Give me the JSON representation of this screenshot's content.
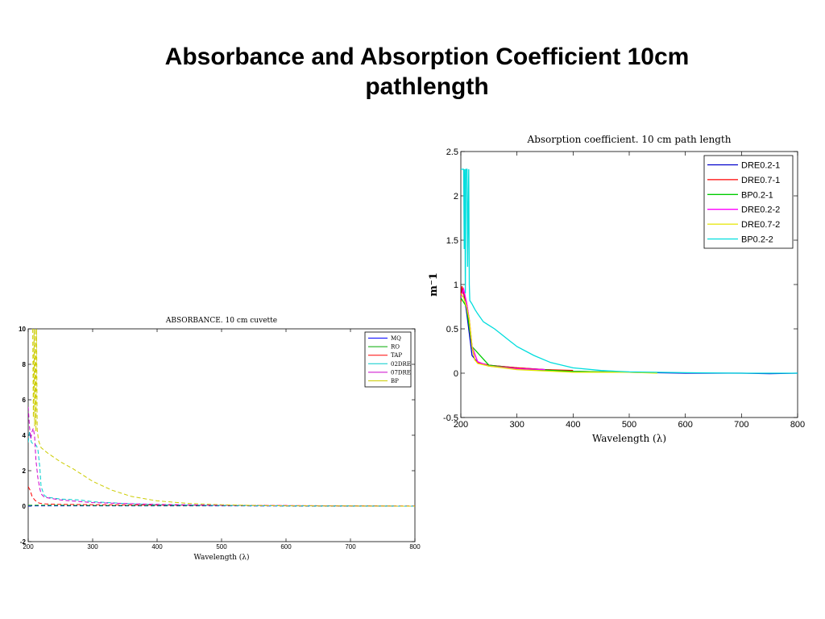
{
  "slide": {
    "title_line1": "Absorbance and Absorption Coefficient 10cm",
    "title_line2": "pathlength"
  },
  "chart_data": [
    {
      "type": "line",
      "title": "ABSORBANCE. 10 cm cuvette",
      "xlabel": "Wavelength (λ)",
      "ylabel": "",
      "xlim": [
        200,
        800
      ],
      "ylim": [
        -2,
        10
      ],
      "xticks": [
        200,
        300,
        400,
        500,
        600,
        700,
        800
      ],
      "yticks": [
        -2,
        0,
        2,
        4,
        6,
        8,
        10
      ],
      "grid": false,
      "legend_position": "top-right",
      "line_style": "dashed",
      "series": [
        {
          "name": "MQ",
          "color": "#0000ff",
          "x": [
            200,
            205,
            210,
            215,
            220,
            250,
            300,
            400,
            500,
            600,
            700,
            800
          ],
          "y": [
            0.0,
            0.02,
            0.02,
            0.02,
            0.02,
            0.02,
            0.02,
            0.02,
            0.02,
            0.01,
            0.0,
            0.0
          ]
        },
        {
          "name": "RO",
          "color": "#00aa00",
          "x": [
            200,
            210,
            220,
            250,
            300,
            400,
            500,
            600,
            700,
            800
          ],
          "y": [
            0.05,
            0.05,
            0.05,
            0.05,
            0.04,
            0.04,
            0.03,
            0.02,
            0.01,
            0.0
          ]
        },
        {
          "name": "TAP",
          "color": "#ff0000",
          "x": [
            200,
            203,
            206,
            210,
            215,
            220,
            230,
            250,
            300,
            400,
            500,
            600,
            700,
            800
          ],
          "y": [
            1.1,
            0.9,
            0.55,
            0.35,
            0.2,
            0.15,
            0.12,
            0.1,
            0.08,
            0.06,
            0.05,
            0.03,
            0.02,
            0.01
          ]
        },
        {
          "name": "02DRE",
          "color": "#00cccc",
          "x": [
            200,
            202,
            205,
            208,
            210,
            213,
            215,
            218,
            220,
            225,
            230,
            250,
            280,
            300,
            350,
            400,
            500,
            600,
            700,
            800
          ],
          "y": [
            3.6,
            4.2,
            3.6,
            3.5,
            3.5,
            3.4,
            3.2,
            2.2,
            1.1,
            0.6,
            0.5,
            0.4,
            0.35,
            0.25,
            0.15,
            0.08,
            0.04,
            0.02,
            0.01,
            0.0
          ]
        },
        {
          "name": "07DRE",
          "color": "#cc00cc",
          "x": [
            200,
            202,
            204,
            206,
            208,
            210,
            212,
            215,
            218,
            220,
            225,
            250,
            300,
            400,
            500,
            600,
            700,
            800
          ],
          "y": [
            5.6,
            4.5,
            3.8,
            4.2,
            4.4,
            3.9,
            2.6,
            1.6,
            1.0,
            0.7,
            0.5,
            0.35,
            0.2,
            0.1,
            0.05,
            0.03,
            0.01,
            0.0
          ]
        },
        {
          "name": "BP",
          "color": "#cccc00",
          "x": [
            207,
            208,
            209,
            210,
            211,
            212,
            213,
            214,
            216,
            220,
            230,
            250,
            270,
            300,
            330,
            360,
            400,
            450,
            500,
            550,
            600,
            700,
            800
          ],
          "y": [
            10,
            5.0,
            10,
            4.5,
            10,
            4.2,
            10,
            4.3,
            3.7,
            3.3,
            3.0,
            2.5,
            2.1,
            1.4,
            0.9,
            0.55,
            0.3,
            0.15,
            0.08,
            0.04,
            0.02,
            0.01,
            0.0
          ]
        }
      ]
    },
    {
      "type": "line",
      "title": "Absorption coefficient. 10 cm path length",
      "xlabel": "Wavelength (λ)",
      "ylabel": "m⁻1",
      "xlim": [
        200,
        800
      ],
      "ylim": [
        -0.5,
        2.5
      ],
      "xticks": [
        200,
        300,
        400,
        500,
        600,
        700,
        800
      ],
      "yticks": [
        -0.5,
        0,
        0.5,
        1,
        1.5,
        2,
        2.5
      ],
      "grid": false,
      "legend_position": "top-right",
      "line_style": "solid",
      "series": [
        {
          "name": "DRE0.2-1",
          "color": "#0000cc",
          "x": [
            200,
            205,
            210,
            215,
            220,
            230,
            250,
            300,
            400,
            500,
            600,
            700,
            750,
            800
          ],
          "y": [
            0.95,
            0.9,
            0.7,
            0.45,
            0.2,
            0.12,
            0.09,
            0.06,
            0.02,
            0.01,
            0.0,
            0.0,
            -0.005,
            0.0
          ]
        },
        {
          "name": "DRE0.7-1",
          "color": "#ff0000",
          "x": [
            200,
            202,
            205,
            210,
            215,
            220,
            225,
            230,
            250,
            300,
            350,
            400
          ],
          "y": [
            0.8,
            0.98,
            0.9,
            0.8,
            0.6,
            0.3,
            0.15,
            0.12,
            0.09,
            0.06,
            0.04,
            0.03
          ]
        },
        {
          "name": "BP0.2-1",
          "color": "#00cc00",
          "x": [
            200,
            210,
            220,
            250,
            300,
            400,
            500,
            550
          ],
          "y": [
            0.85,
            0.75,
            0.3,
            0.09,
            0.05,
            0.02,
            0.01,
            0.005
          ]
        },
        {
          "name": "DRE0.2-2",
          "color": "#ff00ff",
          "x": [
            200,
            205,
            210,
            215,
            220,
            230,
            250,
            300,
            350
          ],
          "y": [
            0.85,
            0.95,
            0.8,
            0.6,
            0.3,
            0.13,
            0.08,
            0.05,
            0.04
          ]
        },
        {
          "name": "DRE0.7-2",
          "color": "#e6e600",
          "x": [
            200,
            205,
            210,
            215,
            220,
            225,
            230,
            250,
            300,
            400,
            500,
            550
          ],
          "y": [
            0.9,
            0.85,
            0.75,
            0.6,
            0.3,
            0.15,
            0.11,
            0.08,
            0.04,
            0.01,
            0.01,
            0.0
          ]
        },
        {
          "name": "BP0.2-2",
          "color": "#00dddd",
          "x": [
            200,
            201,
            202,
            203,
            204,
            205,
            206,
            207,
            208,
            209,
            210,
            211,
            212,
            213,
            214,
            215,
            216,
            218,
            220,
            225,
            230,
            240,
            250,
            260,
            270,
            280,
            300,
            330,
            360,
            400,
            450,
            500,
            550,
            600,
            700,
            800
          ],
          "y": [
            2.3,
            2.3,
            2.3,
            2.3,
            2.3,
            2.3,
            1.4,
            2.3,
            0.9,
            2.3,
            2.3,
            2.3,
            1.2,
            1.8,
            2.3,
            1.0,
            0.82,
            0.8,
            0.78,
            0.72,
            0.67,
            0.58,
            0.54,
            0.5,
            0.45,
            0.4,
            0.3,
            0.2,
            0.12,
            0.06,
            0.03,
            0.015,
            0.01,
            0.005,
            0.0,
            0.0
          ]
        }
      ]
    }
  ]
}
